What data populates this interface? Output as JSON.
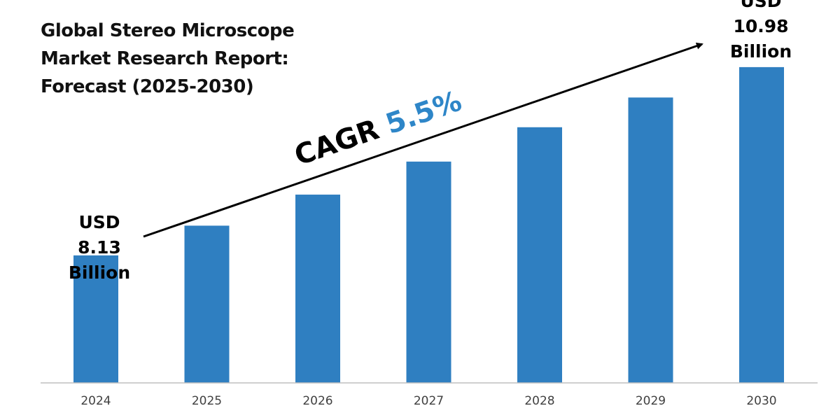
{
  "title_lines": [
    "Global Stereo Microscope",
    "Market Research Report:",
    "Forecast (2025-2030)"
  ],
  "annotations": {
    "start": {
      "line1": "USD",
      "line2": "8.13",
      "line3": "Billion"
    },
    "end": {
      "line1": "USD",
      "line2": "10.98",
      "line3": "Billion"
    },
    "cagr_label": "CAGR",
    "cagr_value": "5.5%"
  },
  "colors": {
    "bar": "#2f7fc1",
    "accent": "#2e86c8",
    "axis": "#bfbfbf",
    "tick": "#404040"
  },
  "chart_data": {
    "type": "bar",
    "title": "Global Stereo Microscope Market Research Report: Forecast (2025-2030)",
    "categories": [
      "2024",
      "2025",
      "2026",
      "2027",
      "2028",
      "2029",
      "2030"
    ],
    "values": [
      8.13,
      8.58,
      9.05,
      9.55,
      10.07,
      10.52,
      10.98
    ],
    "ylabel": "",
    "xlabel": "",
    "ylim": [
      6.2,
      11.0
    ],
    "grid": false,
    "legend": "none"
  }
}
